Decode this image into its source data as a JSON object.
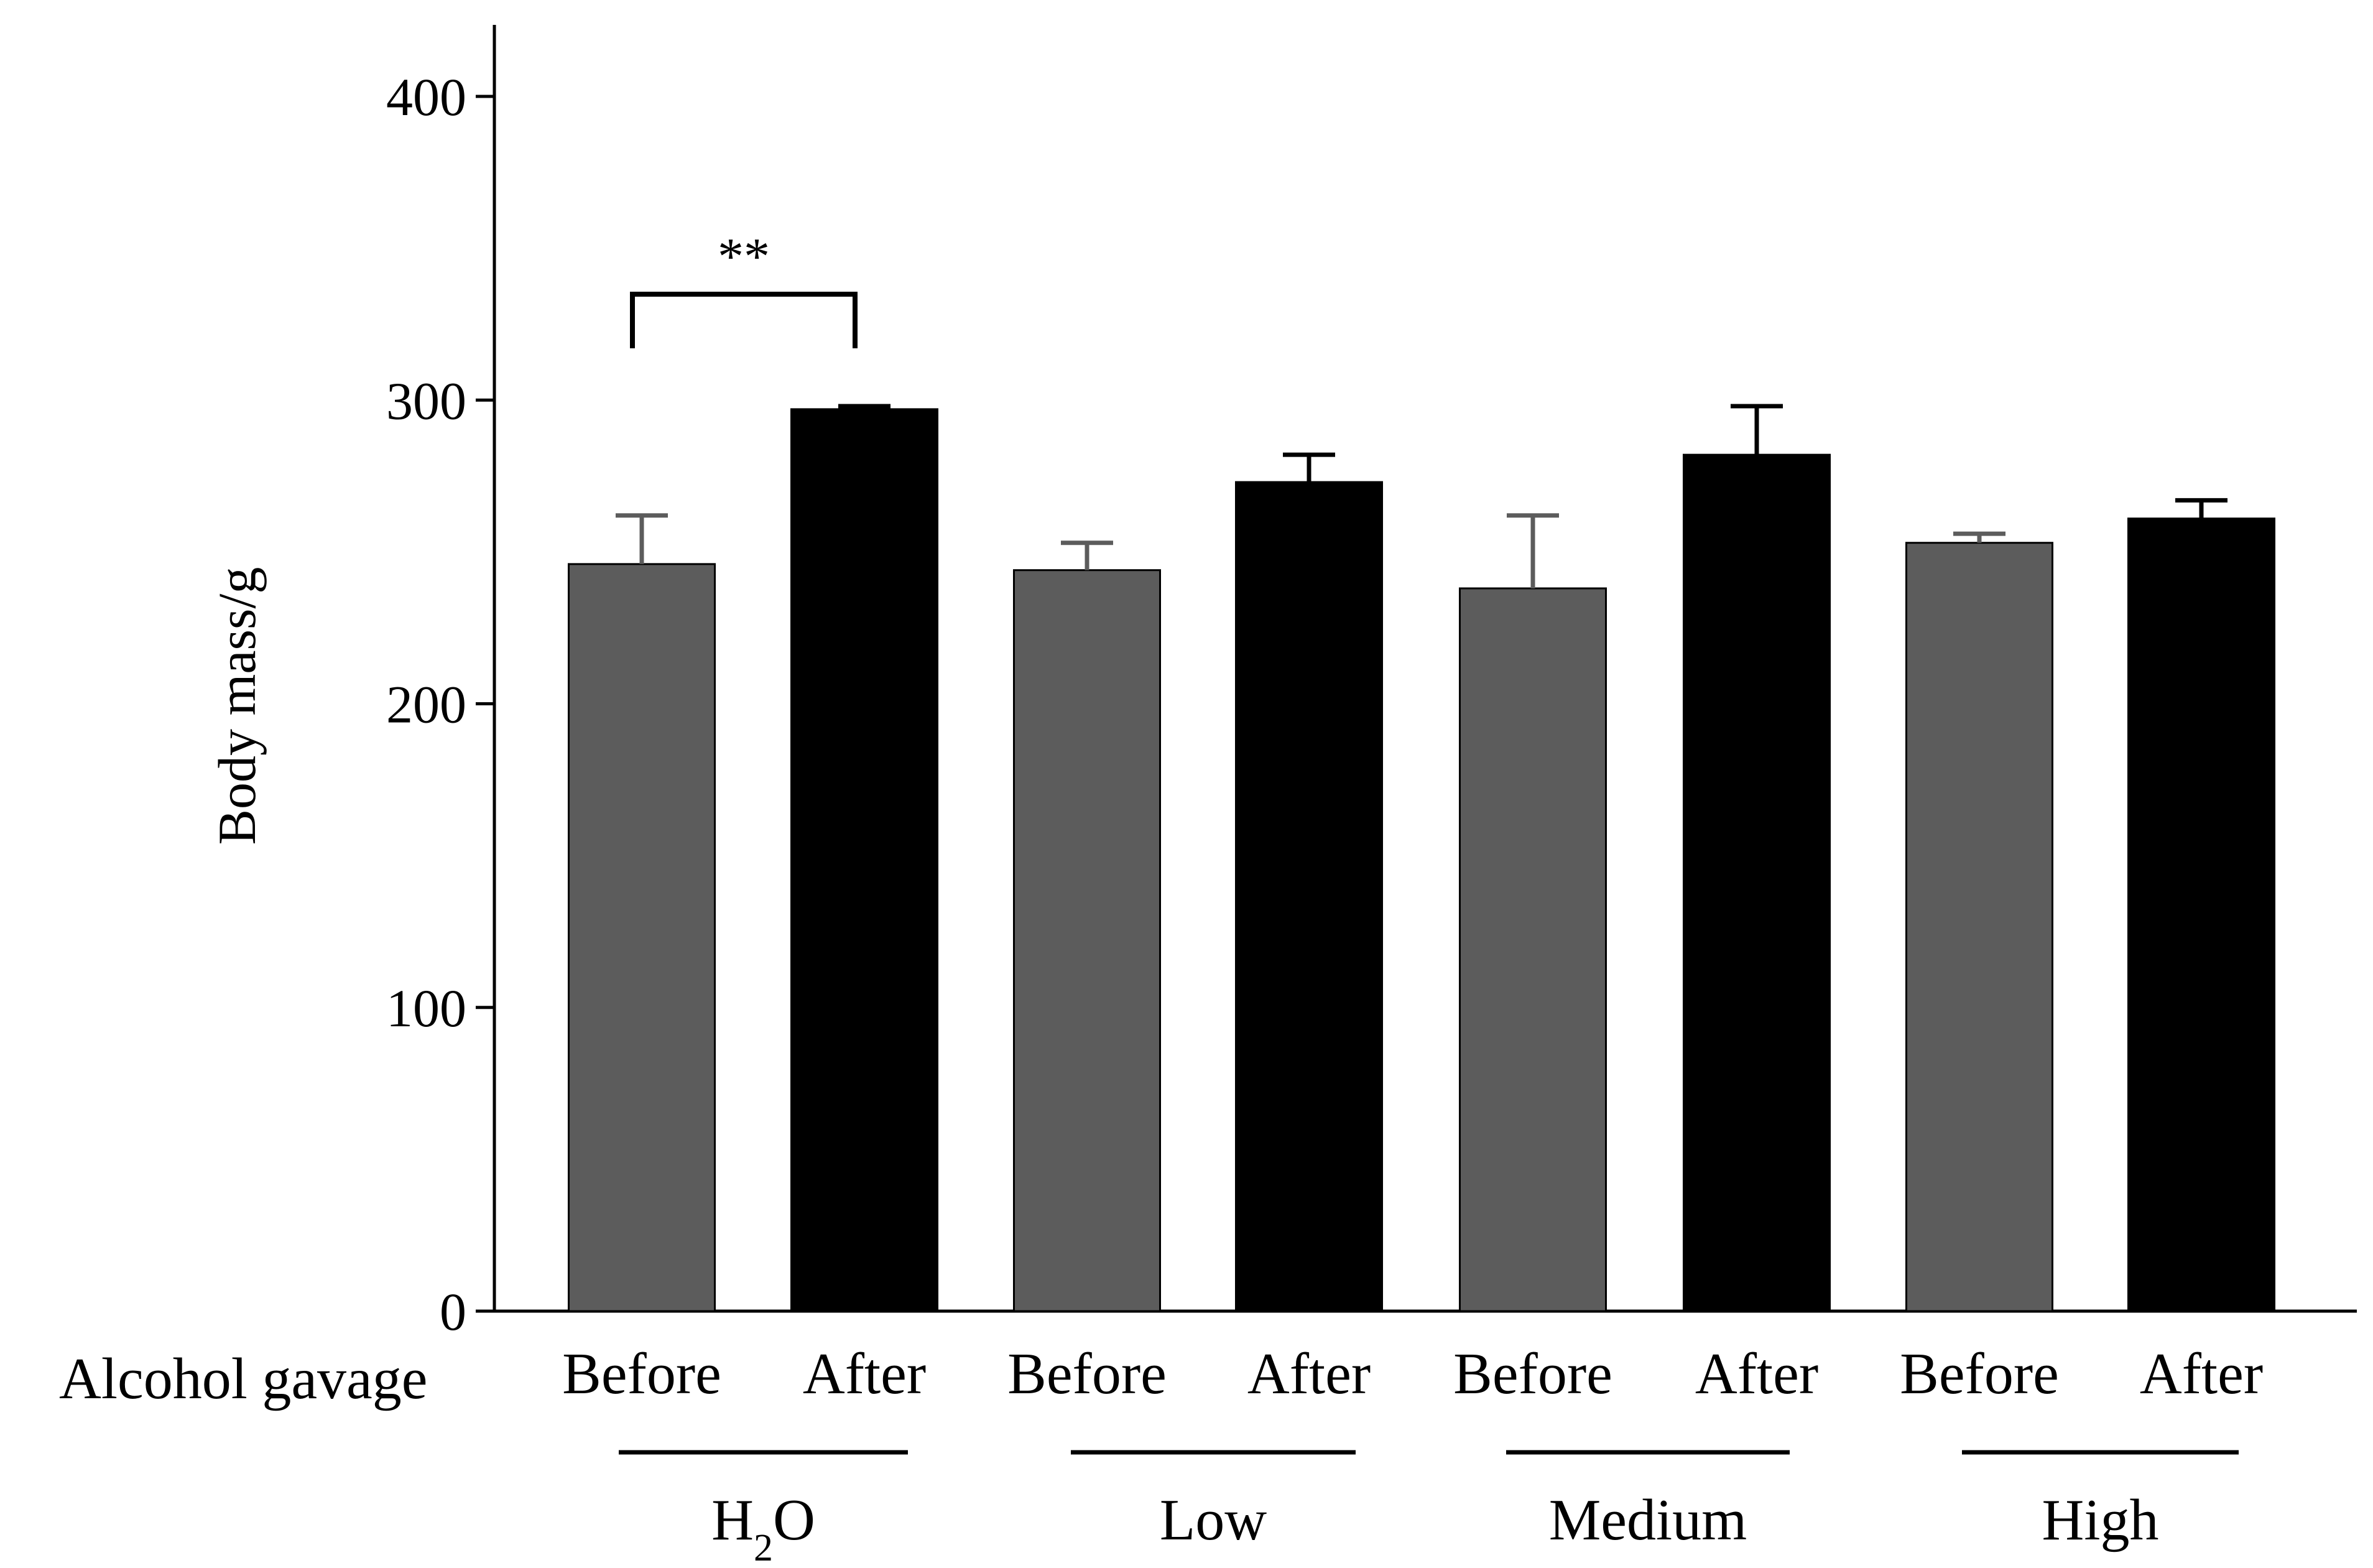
{
  "chart_data": {
    "type": "bar",
    "ylabel": "Body mass/g",
    "xlabel": "Alcohol gavage",
    "ylim": [
      0,
      420
    ],
    "yticks": [
      0,
      100,
      200,
      300,
      400
    ],
    "grid": false,
    "bar_colors": {
      "Before": "#5c5c5c",
      "After": "#000000"
    },
    "groups": [
      {
        "name": "H",
        "name_sub": "2",
        "name_tail": "O"
      },
      {
        "name": "Low"
      },
      {
        "name": "Medium"
      },
      {
        "name": "High"
      }
    ],
    "bars": [
      {
        "group": 0,
        "label": "Before",
        "value": 246,
        "error": 16
      },
      {
        "group": 0,
        "label": "After",
        "value": 297,
        "error": 1
      },
      {
        "group": 1,
        "label": "Before",
        "value": 244,
        "error": 9
      },
      {
        "group": 1,
        "label": "After",
        "value": 273,
        "error": 9
      },
      {
        "group": 2,
        "label": "Before",
        "value": 238,
        "error": 24
      },
      {
        "group": 2,
        "label": "After",
        "value": 282,
        "error": 16
      },
      {
        "group": 3,
        "label": "Before",
        "value": 253,
        "error": 3
      },
      {
        "group": 3,
        "label": "After",
        "value": 261,
        "error": 6
      }
    ],
    "annotations": [
      {
        "text": "**",
        "between": [
          0,
          1
        ]
      }
    ]
  }
}
